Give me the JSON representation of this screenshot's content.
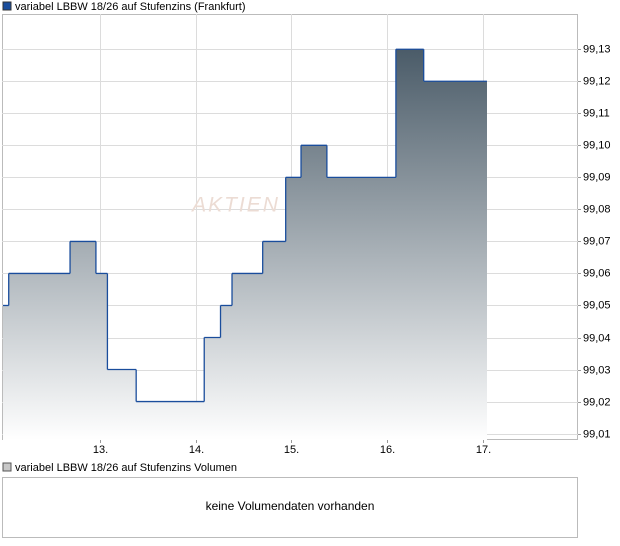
{
  "chart_data": {
    "type": "step",
    "series": [
      {
        "name": "variabel LBBW 18/26 auf Stufenzins (Frankfurt)",
        "color": "#1a4d9c",
        "x": [
          11.99,
          12.05,
          12.69,
          12.96,
          13.08,
          13.38,
          14.09,
          14.26,
          14.38,
          14.7,
          14.94,
          15.1,
          15.37,
          16.09,
          16.38,
          17.04
        ],
        "values": [
          99.05,
          99.06,
          99.07,
          99.06,
          99.03,
          99.02,
          99.04,
          99.05,
          99.06,
          99.07,
          99.09,
          99.1,
          99.09,
          99.13,
          99.12,
          99.12
        ]
      }
    ],
    "xlim": [
      11.98,
      17.99
    ],
    "xticks": [
      {
        "value": 13,
        "label": "13."
      },
      {
        "value": 14,
        "label": "14."
      },
      {
        "value": 15,
        "label": "15."
      },
      {
        "value": 16,
        "label": "16."
      },
      {
        "value": 17,
        "label": "17."
      }
    ],
    "ylim": [
      99.008,
      99.141
    ],
    "yticks": [
      {
        "value": 99.01,
        "label": "99,01"
      },
      {
        "value": 99.02,
        "label": "99,02"
      },
      {
        "value": 99.03,
        "label": "99,03"
      },
      {
        "value": 99.04,
        "label": "99,04"
      },
      {
        "value": 99.05,
        "label": "99,05"
      },
      {
        "value": 99.06,
        "label": "99,06"
      },
      {
        "value": 99.07,
        "label": "99,07"
      },
      {
        "value": 99.08,
        "label": "99,08"
      },
      {
        "value": 99.09,
        "label": "99,09"
      },
      {
        "value": 99.1,
        "label": "99,10"
      },
      {
        "value": 99.11,
        "label": "99,11"
      },
      {
        "value": 99.12,
        "label": "99,12"
      },
      {
        "value": 99.13,
        "label": "99,13"
      }
    ],
    "grid": true,
    "watermark": "AKTIEN"
  },
  "volume_panel": {
    "legend": "variabel LBBW 18/26 auf Stufenzins Volumen",
    "color": "#c8c8c8",
    "message": "keine Volumendaten vorhanden"
  }
}
